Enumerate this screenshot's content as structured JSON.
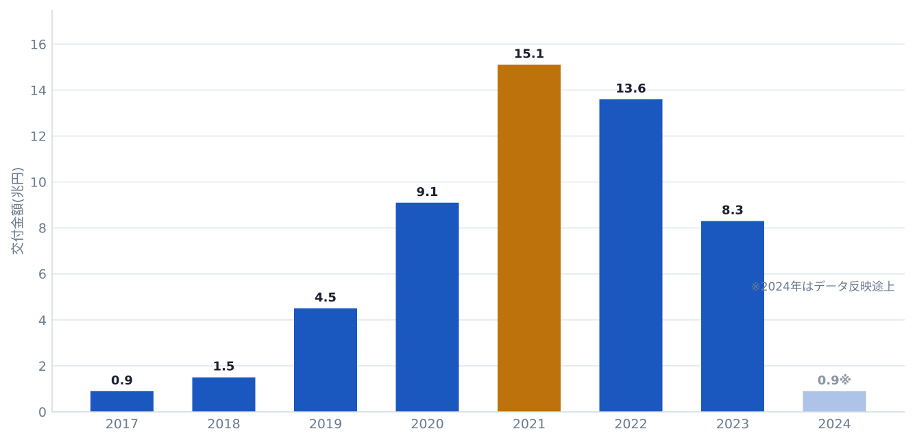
{
  "chart_data": {
    "type": "bar",
    "categories": [
      "2017",
      "2018",
      "2019",
      "2020",
      "2021",
      "2022",
      "2023",
      "2024"
    ],
    "values": [
      0.9,
      1.5,
      4.5,
      9.1,
      15.1,
      13.6,
      8.3,
      0.9
    ],
    "data_labels": [
      "0.9",
      "1.5",
      "4.5",
      "9.1",
      "15.1",
      "13.6",
      "8.3",
      "0.9※"
    ],
    "ylabel": "交付金額(兆円)",
    "xlabel": "",
    "ylim": [
      0,
      17.5
    ],
    "yticks": [
      0,
      2,
      4,
      6,
      8,
      10,
      12,
      14,
      16
    ],
    "grid": true,
    "annotation": "※2024年はデータ反映途上",
    "colors": {
      "default": "#1a58c0",
      "highlight": "#bd720b",
      "partial": "#adc4e8",
      "grid": "#dde6ee",
      "axis": "#cfd8e2"
    },
    "highlight_index": 4,
    "partial_index": 7
  }
}
